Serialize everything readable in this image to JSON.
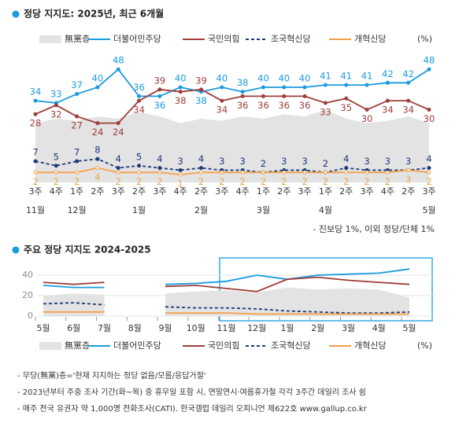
{
  "chart_data": [
    {
      "type": "line",
      "title": "정당 지지도: 2025년, 최근 6개월",
      "categories": [
        "3주",
        "4주",
        "1주",
        "2주",
        "3주",
        "2주",
        "3주",
        "4주",
        "2주",
        "3주",
        "4주",
        "1주",
        "2주",
        "3주",
        "1주",
        "2주",
        "3주",
        "4주",
        "2주",
        "3주"
      ],
      "months": [
        "11월",
        null,
        "12월",
        null,
        null,
        "1월",
        null,
        null,
        "2월",
        null,
        null,
        "3월",
        null,
        null,
        "4월",
        null,
        null,
        null,
        null,
        "5월"
      ],
      "legend_suffix": "(%)",
      "note": "- 진보당 1%, 이외 정당/단체 1%",
      "series": [
        {
          "name": "無黨층",
          "color": "#e3e3e3",
          "kind": "area",
          "values": [
            24,
            26,
            25,
            27,
            26,
            29,
            27,
            24,
            26,
            25,
            27,
            26,
            28,
            27,
            30,
            26,
            24,
            25,
            27,
            24
          ]
        },
        {
          "name": "더불어민주당",
          "color": "#1a9be0",
          "values": [
            34,
            33,
            37,
            40,
            48,
            36,
            36,
            40,
            38,
            40,
            38,
            40,
            40,
            40,
            41,
            41,
            41,
            42,
            42,
            48
          ]
        },
        {
          "name": "국민의힘",
          "color": "#9e3d3a",
          "values": [
            28,
            32,
            27,
            24,
            24,
            34,
            39,
            38,
            39,
            34,
            36,
            36,
            36,
            36,
            33,
            35,
            30,
            34,
            34,
            30
          ]
        },
        {
          "name": "조국혁신당",
          "color": "#1f3a7a",
          "dash": true,
          "values": [
            7,
            5,
            7,
            8,
            4,
            5,
            4,
            3,
            4,
            3,
            3,
            2,
            3,
            3,
            2,
            4,
            3,
            3,
            3,
            4
          ]
        },
        {
          "name": "개혁신당",
          "color": "#f5a04a",
          "values": [
            2,
            2,
            2,
            4,
            2,
            2,
            2,
            1,
            2,
            2,
            2,
            2,
            2,
            2,
            2,
            2,
            2,
            2,
            3,
            2
          ]
        }
      ]
    },
    {
      "type": "line",
      "title": "주요 정당 지지도 2024-2025",
      "categories": [
        "5월",
        "6월",
        "7월",
        "8월",
        "9월",
        "10월",
        "11월",
        "12월",
        "1월",
        "2월",
        "3월",
        "4월",
        "5월"
      ],
      "ylim": [
        0,
        50
      ],
      "yticks": [
        0,
        20,
        40
      ],
      "grid": true,
      "legend_suffix": "(%)",
      "series": [
        {
          "name": "無黨층",
          "color": "#e3e3e3",
          "kind": "area",
          "values": [
            20,
            22,
            21,
            null,
            22,
            24,
            25,
            23,
            28,
            26,
            27,
            26,
            18
          ]
        },
        {
          "name": "더불어민주당",
          "color": "#1a9be0",
          "values": [
            30,
            28,
            28,
            null,
            31,
            32,
            34,
            40,
            36,
            40,
            41,
            42,
            46
          ]
        },
        {
          "name": "국민의힘",
          "color": "#9e3d3a",
          "values": [
            33,
            31,
            33,
            null,
            29,
            30,
            27,
            24,
            36,
            38,
            35,
            33,
            31
          ]
        },
        {
          "name": "조국혁신당",
          "color": "#1f3a7a",
          "dash": true,
          "values": [
            12,
            13,
            11,
            null,
            9,
            8,
            8,
            7,
            5,
            4,
            3,
            3,
            4
          ]
        },
        {
          "name": "개혁신당",
          "color": "#f5a04a",
          "values": [
            4,
            4,
            4,
            null,
            3,
            3,
            3,
            2,
            2,
            2,
            2,
            2,
            2
          ]
        }
      ]
    }
  ],
  "footnotes": [
    "- 무당(無黨)층='현재 지지하는 정당 없음/모름/응답거절'",
    "- 2023년부터 주중 조사 기간(화~목) 중 휴무일 포함 시, 연말연시·여름휴가철 각각 3주간 데일리 조사 쉼",
    "- 매주 전국 유권자 약 1,000명 전화조사(CATI). 한국갤럽 데일리 오피니언 제622호 www.gallup.co.kr"
  ]
}
